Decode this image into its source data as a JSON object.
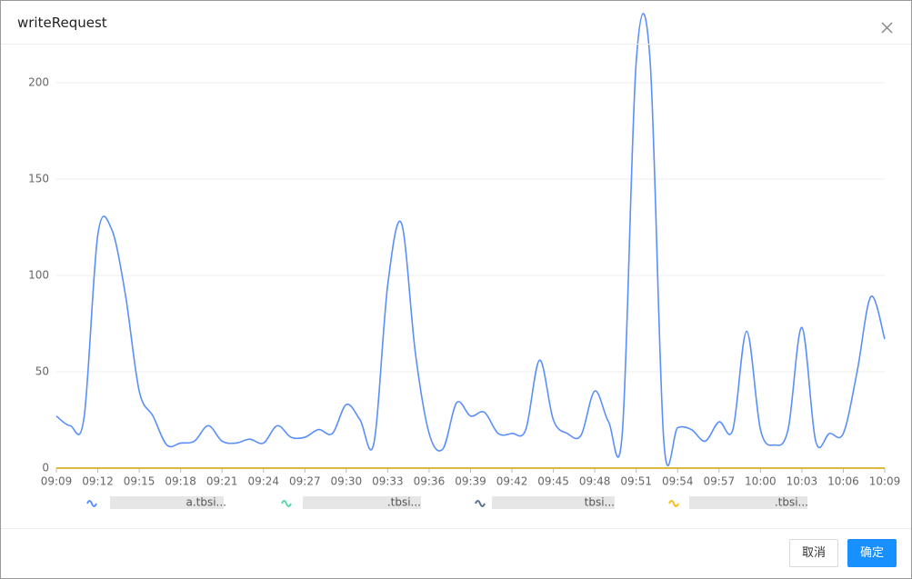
{
  "chart_data": {
    "type": "line",
    "title": "writeRequest",
    "categories": [
      "09:09",
      null,
      null,
      "09:12",
      null,
      null,
      "09:15",
      null,
      null,
      "09:18",
      null,
      null,
      "09:21",
      null,
      null,
      "09:24",
      null,
      null,
      "09:27",
      null,
      null,
      "09:30",
      null,
      null,
      "09:33",
      null,
      null,
      "09:36",
      null,
      null,
      "09:39",
      null,
      null,
      "09:42",
      null,
      null,
      "09:45",
      null,
      null,
      "09:48",
      null,
      null,
      "09:51",
      null,
      null,
      "09:54",
      null,
      null,
      "09:57",
      null,
      null,
      "10:00",
      null,
      null,
      "10:03",
      null,
      null,
      "10:06",
      null,
      null,
      "10:09"
    ],
    "series": [
      {
        "name": "a.tbsi...",
        "color": "#5b8ff9",
        "values": [
          27,
          22,
          26,
          121,
          124,
          90,
          40,
          27,
          12,
          13,
          14,
          22,
          14,
          13,
          15,
          13,
          22,
          16,
          16,
          20,
          18,
          33,
          25,
          13,
          95,
          127,
          60,
          18,
          10,
          34,
          27,
          29,
          18,
          18,
          20,
          56,
          25,
          18,
          17,
          40,
          24,
          19,
          211,
          212,
          14,
          21,
          20,
          14,
          24,
          20,
          71,
          20,
          12,
          20,
          73,
          14,
          18,
          18,
          50,
          89,
          67
        ]
      },
      {
        "name": ".tbsi...",
        "color": "#5ad8a6",
        "values": [
          0,
          0,
          0,
          0,
          0,
          0,
          0,
          0,
          0,
          0,
          0,
          0,
          0,
          0,
          0,
          0,
          0,
          0,
          0,
          0,
          0,
          0,
          0,
          0,
          0,
          0,
          0,
          0,
          0,
          0,
          0,
          0,
          0,
          0,
          0,
          0,
          0,
          0,
          0,
          0,
          0,
          0,
          0,
          0,
          0,
          0,
          0,
          0,
          0,
          0,
          0,
          0,
          0,
          0,
          0,
          0,
          0,
          0,
          0,
          0,
          0
        ]
      },
      {
        "name": "tbsi...",
        "color": "#5d7092",
        "values": [
          0,
          0,
          0,
          0,
          0,
          0,
          0,
          0,
          0,
          0,
          0,
          0,
          0,
          0,
          0,
          0,
          0,
          0,
          0,
          0,
          0,
          0,
          0,
          0,
          0,
          0,
          0,
          0,
          0,
          0,
          0,
          0,
          0,
          0,
          0,
          0,
          0,
          0,
          0,
          0,
          0,
          0,
          0,
          0,
          0,
          0,
          0,
          0,
          0,
          0,
          0,
          0,
          0,
          0,
          0,
          0,
          0,
          0,
          0,
          0,
          0
        ]
      },
      {
        "name": ".tbsi...",
        "color": "#f6bd16",
        "values": [
          0,
          0,
          0,
          0,
          0,
          0,
          0,
          0,
          0,
          0,
          0,
          0,
          0,
          0,
          0,
          0,
          0,
          0,
          0,
          0,
          0,
          0,
          0,
          0,
          0,
          0,
          0,
          0,
          0,
          0,
          0,
          0,
          0,
          0,
          0,
          0,
          0,
          0,
          0,
          0,
          0,
          0,
          0,
          0,
          0,
          0,
          0,
          0,
          0,
          0,
          0,
          0,
          0,
          0,
          0,
          0,
          0,
          0,
          0,
          0,
          0
        ]
      }
    ],
    "ylim": [
      0,
      200
    ],
    "yticks": [
      0,
      50,
      100,
      150,
      200
    ],
    "grid": true
  },
  "buttons": [
    "取消",
    "确定"
  ]
}
